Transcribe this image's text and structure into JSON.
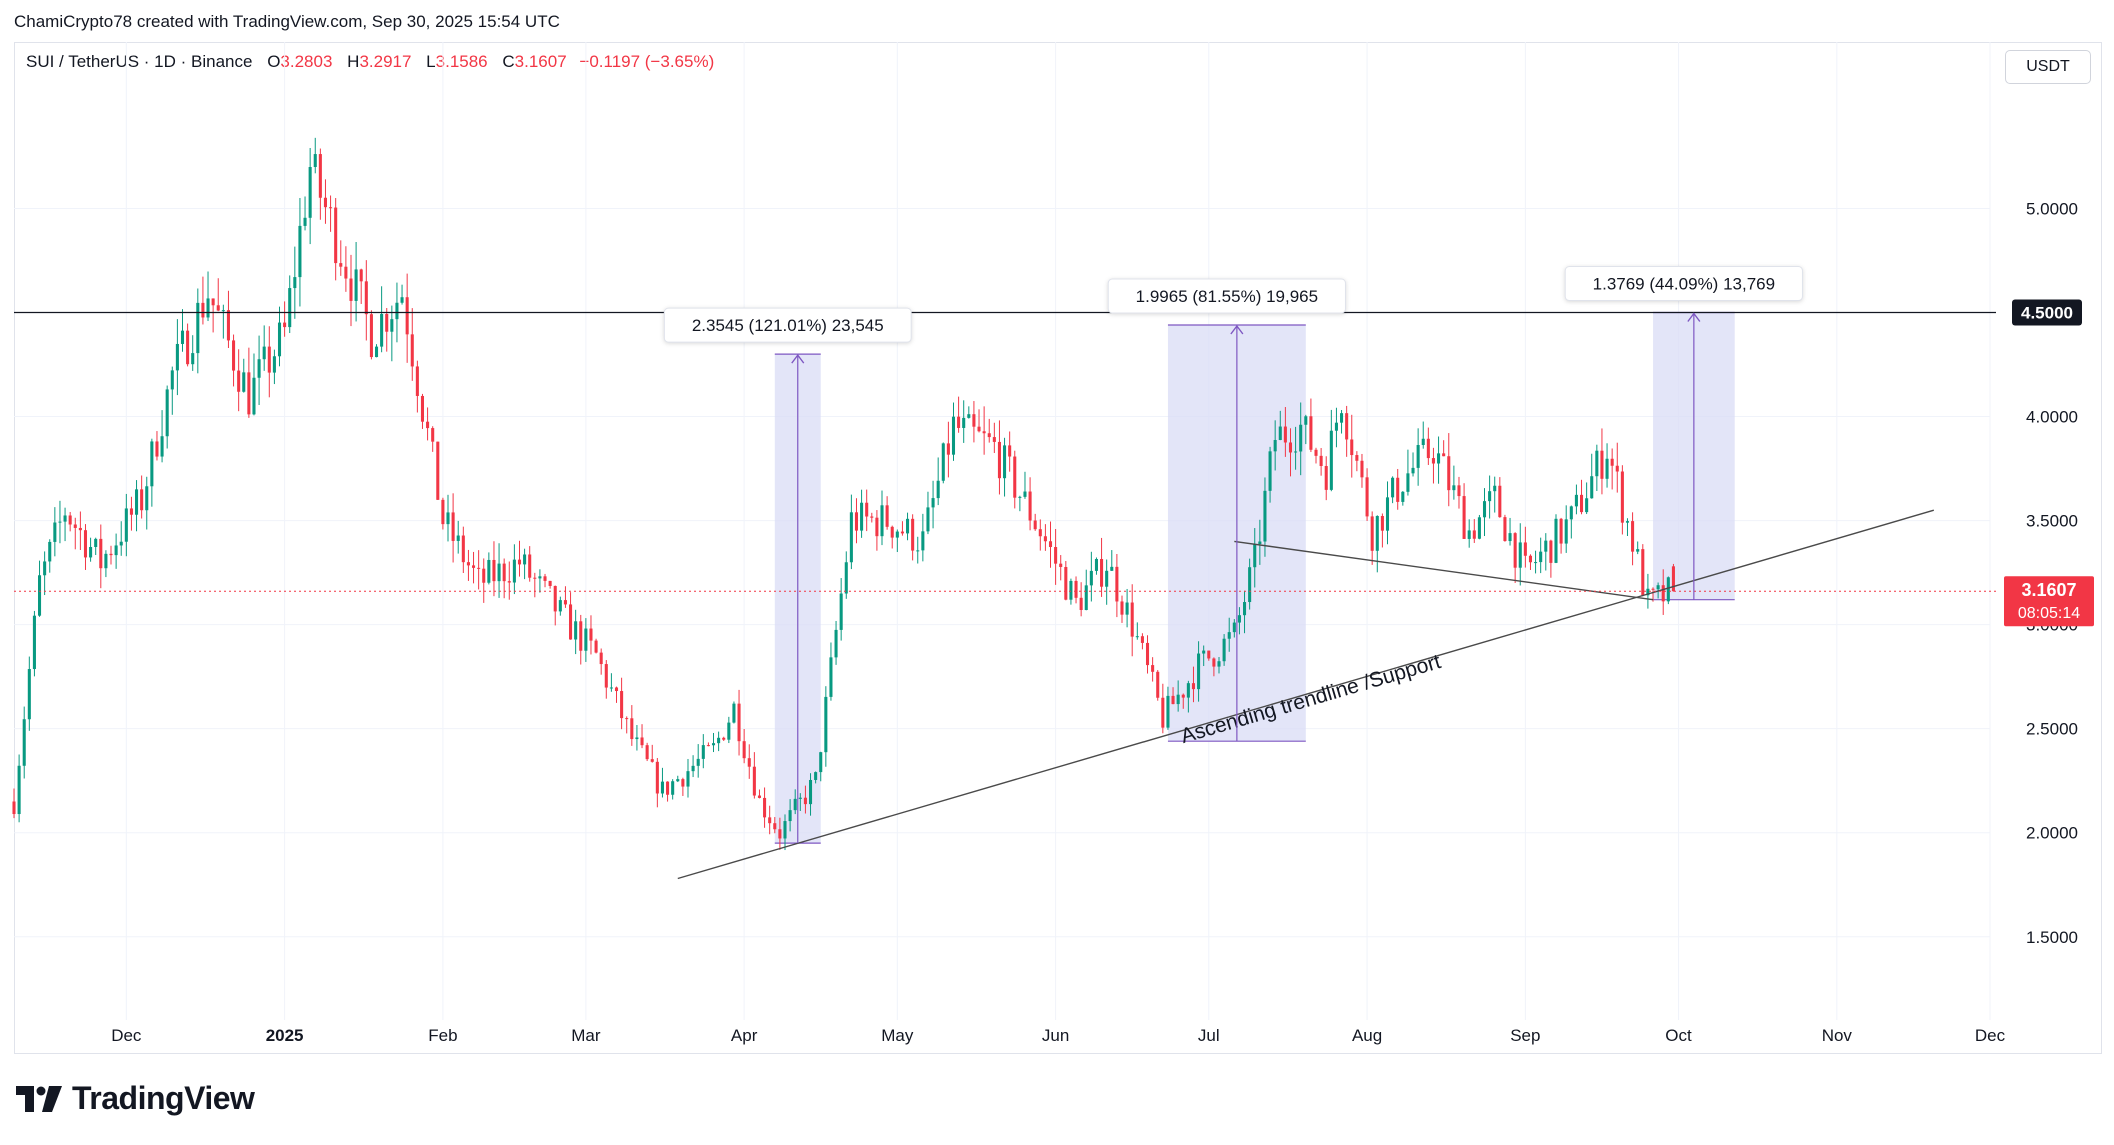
{
  "caption": "ChamiCrypto78 created with TradingView.com, Sep 30, 2025 15:54 UTC",
  "legend": {
    "symbol": "SUI / TetherUS · 1D · Binance",
    "o_label": "O",
    "o_value": "3.2803",
    "h_label": "H",
    "h_value": "3.2917",
    "l_label": "L",
    "l_value": "3.1586",
    "c_label": "C",
    "c_value": "3.1607",
    "change": "−0.1197 (−3.65%)"
  },
  "currency_button": "USDT",
  "logo_text": "TradingView",
  "colors": {
    "up": "#089981",
    "down": "#f23645",
    "measure": "#7e57c2",
    "measure_fill": "#d9dcf5",
    "grid": "#f0f3fa"
  },
  "chart_data": {
    "type": "candlestick",
    "symbol": "SUI / TetherUS",
    "interval": "1D",
    "exchange": "Binance",
    "last_price": 3.1607,
    "countdown": "08:05:14",
    "ylim": [
      1.1,
      5.8
    ],
    "y_ticks": [
      "1.5000",
      "2.0000",
      "2.5000",
      "3.0000",
      "3.5000",
      "4.0000",
      "4.5000",
      "5.0000"
    ],
    "x_ticks": [
      "Dec",
      "2025",
      "Feb",
      "Mar",
      "Apr",
      "May",
      "Jun",
      "Jul",
      "Aug",
      "Sep",
      "Oct",
      "Nov",
      "Dec"
    ],
    "x_tick_dates": [
      "2024-12-01",
      "2025-01-01",
      "2025-02-01",
      "2025-03-01",
      "2025-04-01",
      "2025-05-01",
      "2025-06-01",
      "2025-07-01",
      "2025-08-01",
      "2025-09-01",
      "2025-10-01",
      "2025-11-01",
      "2025-12-01"
    ],
    "x_range": [
      "2024-11-09",
      "2025-12-01"
    ],
    "series_anchor_closes": [
      {
        "date": "2024-11-09",
        "close": 2.15
      },
      {
        "date": "2024-11-14",
        "close": 3.2
      },
      {
        "date": "2024-11-19",
        "close": 3.55
      },
      {
        "date": "2024-11-26",
        "close": 3.3
      },
      {
        "date": "2024-12-04",
        "close": 3.6
      },
      {
        "date": "2024-12-10",
        "close": 4.2
      },
      {
        "date": "2024-12-17",
        "close": 4.6
      },
      {
        "date": "2024-12-25",
        "close": 4.1
      },
      {
        "date": "2025-01-01",
        "close": 4.4
      },
      {
        "date": "2025-01-06",
        "close": 5.2
      },
      {
        "date": "2025-01-12",
        "close": 4.8
      },
      {
        "date": "2025-01-18",
        "close": 4.4
      },
      {
        "date": "2025-01-24",
        "close": 4.6
      },
      {
        "date": "2025-02-01",
        "close": 3.5
      },
      {
        "date": "2025-02-08",
        "close": 3.2
      },
      {
        "date": "2025-02-16",
        "close": 3.3
      },
      {
        "date": "2025-02-24",
        "close": 3.05
      },
      {
        "date": "2025-03-03",
        "close": 2.85
      },
      {
        "date": "2025-03-10",
        "close": 2.45
      },
      {
        "date": "2025-03-16",
        "close": 2.2
      },
      {
        "date": "2025-03-26",
        "close": 2.4
      },
      {
        "date": "2025-03-30",
        "close": 2.6
      },
      {
        "date": "2025-04-04",
        "close": 2.15
      },
      {
        "date": "2025-04-08",
        "close": 2.0
      },
      {
        "date": "2025-04-15",
        "close": 2.25
      },
      {
        "date": "2025-04-22",
        "close": 3.5
      },
      {
        "date": "2025-04-29",
        "close": 3.5
      },
      {
        "date": "2025-05-06",
        "close": 3.4
      },
      {
        "date": "2025-05-12",
        "close": 3.95
      },
      {
        "date": "2025-05-20",
        "close": 3.85
      },
      {
        "date": "2025-05-29",
        "close": 3.45
      },
      {
        "date": "2025-06-05",
        "close": 3.1
      },
      {
        "date": "2025-06-11",
        "close": 3.3
      },
      {
        "date": "2025-06-16",
        "close": 3.0
      },
      {
        "date": "2025-06-22",
        "close": 2.55
      },
      {
        "date": "2025-06-29",
        "close": 2.8
      },
      {
        "date": "2025-07-06",
        "close": 2.95
      },
      {
        "date": "2025-07-10",
        "close": 3.3
      },
      {
        "date": "2025-07-14",
        "close": 3.9
      },
      {
        "date": "2025-07-19",
        "close": 3.95
      },
      {
        "date": "2025-07-24",
        "close": 3.75
      },
      {
        "date": "2025-07-27",
        "close": 4.1
      },
      {
        "date": "2025-08-02",
        "close": 3.45
      },
      {
        "date": "2025-08-08",
        "close": 3.7
      },
      {
        "date": "2025-08-14",
        "close": 3.85
      },
      {
        "date": "2025-08-21",
        "close": 3.45
      },
      {
        "date": "2025-08-26",
        "close": 3.6
      },
      {
        "date": "2025-09-01",
        "close": 3.25
      },
      {
        "date": "2025-09-10",
        "close": 3.5
      },
      {
        "date": "2025-09-17",
        "close": 3.85
      },
      {
        "date": "2025-09-22",
        "close": 3.4
      },
      {
        "date": "2025-09-25",
        "close": 3.1
      },
      {
        "date": "2025-09-30",
        "close": 3.16
      }
    ],
    "horizontal_line": {
      "value": 4.5,
      "label": "4.5000"
    },
    "trendlines": [
      {
        "label": "Ascending trendline /Support",
        "from": {
          "date": "2025-03-19",
          "price": 1.78
        },
        "to": {
          "date": "2025-11-20",
          "price": 3.55
        }
      },
      {
        "label": "",
        "from": {
          "date": "2025-07-06",
          "price": 3.4
        },
        "to": {
          "date": "2025-09-26",
          "price": 3.12
        }
      }
    ],
    "measurements": [
      {
        "label": "2.3545 (121.01%) 23,545",
        "from_date": "2025-04-07",
        "to_date": "2025-04-16",
        "low": 1.95,
        "high": 4.3
      },
      {
        "label": "1.9965 (81.55%) 19,965",
        "from_date": "2025-06-23",
        "to_date": "2025-07-20",
        "low": 2.44,
        "high": 4.44
      },
      {
        "label": "1.3769 (44.09%) 13,769",
        "from_date": "2025-09-26",
        "to_date": "2025-10-12",
        "low": 3.12,
        "high": 4.5
      }
    ]
  }
}
